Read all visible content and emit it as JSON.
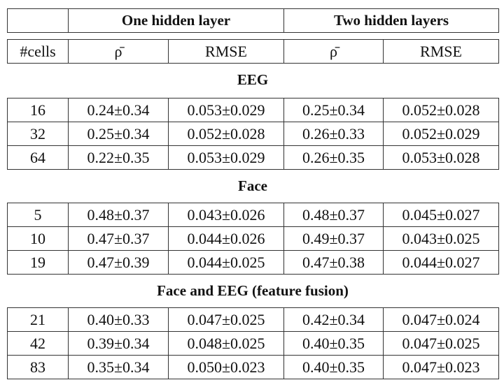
{
  "header": {
    "groups": [
      "One hidden layer",
      "Two hidden layers"
    ],
    "columns": [
      "#cells",
      "ρ̄",
      "RMSE",
      "ρ̄",
      "RMSE"
    ]
  },
  "sections": [
    {
      "title": "EEG",
      "rows": [
        [
          "16",
          "0.24±0.34",
          "0.053±0.029",
          "0.25±0.34",
          "0.052±0.028"
        ],
        [
          "32",
          "0.25±0.34",
          "0.052±0.028",
          "0.26±0.33",
          "0.052±0.029"
        ],
        [
          "64",
          "0.22±0.35",
          "0.053±0.029",
          "0.26±0.35",
          "0.053±0.028"
        ]
      ]
    },
    {
      "title": "Face",
      "rows": [
        [
          "5",
          "0.48±0.37",
          "0.043±0.026",
          "0.48±0.37",
          "0.045±0.027"
        ],
        [
          "10",
          "0.47±0.37",
          "0.044±0.026",
          "0.49±0.37",
          "0.043±0.025"
        ],
        [
          "19",
          "0.47±0.39",
          "0.044±0.025",
          "0.47±0.38",
          "0.044±0.027"
        ]
      ]
    },
    {
      "title": "Face and EEG (feature fusion)",
      "rows": [
        [
          "21",
          "0.40±0.33",
          "0.047±0.025",
          "0.42±0.34",
          "0.047±0.024"
        ],
        [
          "42",
          "0.39±0.34",
          "0.048±0.025",
          "0.40±0.35",
          "0.047±0.025"
        ],
        [
          "83",
          "0.35±0.34",
          "0.050±0.023",
          "0.40±0.35",
          "0.047±0.023"
        ]
      ]
    }
  ]
}
